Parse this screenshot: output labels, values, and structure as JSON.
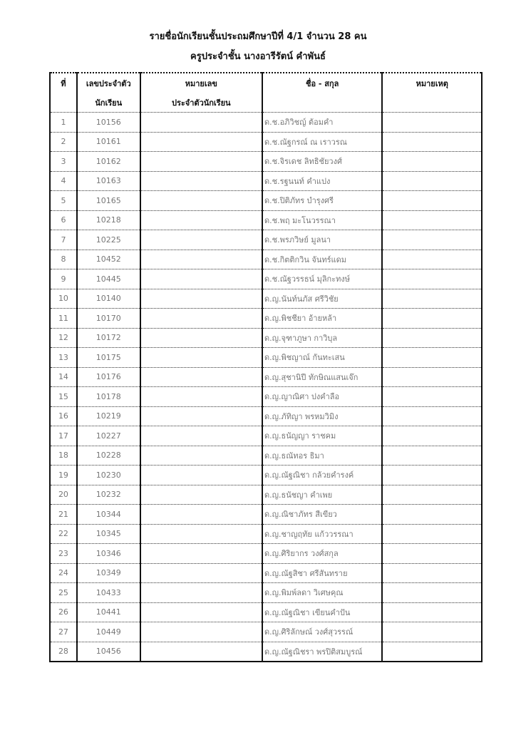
{
  "title": "รายชื่อนักเรียนชั้นประถมศึกษาปีที่  4/1  จำนวน 28  คน",
  "subtitle": "ครูประจำชั้น นางอารีรัตน์  คำพันธ์",
  "headers": {
    "no": "ที่",
    "id_1": "เลขประจำตัว",
    "id_2": "นักเรียน",
    "code_1": "หมายเลข",
    "code_2": "ประจำตัวนักเรียน",
    "name": "ชื่อ - สกุล",
    "note": "หมายเหตุ"
  },
  "rows": [
    {
      "no": "1",
      "id": "10156",
      "name": "ด.ช.อภิวิชญ์  ต้อมคำ"
    },
    {
      "no": "2",
      "id": "10161",
      "name": "ด.ช.ณัฐกรณ์  ณ เราวรณ"
    },
    {
      "no": "3",
      "id": "10162",
      "name": "ด.ช.จิรเดช  ลิทธิชัยวงศ์"
    },
    {
      "no": "4",
      "id": "10163",
      "name": "ด.ช.รฐนนท์  คำแปง"
    },
    {
      "no": "5",
      "id": "10165",
      "name": "ด.ช.ปิติภัทร  บำรุงศรี"
    },
    {
      "no": "6",
      "id": "10218",
      "name": "ด.ช.พฤ  มะโนวรรณา"
    },
    {
      "no": "7",
      "id": "10225",
      "name": "ด.ช.พรภวิษย์  มูลนา"
    },
    {
      "no": "8",
      "id": "10452",
      "name": "ด.ช.กิตติกวิน  จันทร์แดม"
    },
    {
      "no": "9",
      "id": "10445",
      "name": "ด.ช.ณัฐวรรธน์  มุลิกะทงษ์"
    },
    {
      "no": "10",
      "id": "10140",
      "name": "ด.ญ.นันท์นภัส  ศรีวิชัย"
    },
    {
      "no": "11",
      "id": "10170",
      "name": "ด.ญ.พิชชียา  อ้ายหล้า"
    },
    {
      "no": "12",
      "id": "10172",
      "name": "ด.ญ.จุฑาภูษา  กาวิบุล"
    },
    {
      "no": "13",
      "id": "10175",
      "name": "ด.ญ.พิชญาณ์  กันทะเสน"
    },
    {
      "no": "14",
      "id": "10176",
      "name": "ด.ญ.สุชานิปี  ทักษิณแสนเจ๊ก"
    },
    {
      "no": "15",
      "id": "10178",
      "name": "ด.ญ.ญาณิศา  ปงคำลือ"
    },
    {
      "no": "16",
      "id": "10219",
      "name": "ด.ญ.ภัทิญา  พรหมวิมิง"
    },
    {
      "no": "17",
      "id": "10227",
      "name": "ด.ญ.ธนัญญา  ราชคม"
    },
    {
      "no": "18",
      "id": "10228",
      "name": "ด.ญ.ธณัทอร  ธิมา"
    },
    {
      "no": "19",
      "id": "10230",
      "name": "ด.ญ.ณัฐณิชา  กล้วยคำรงค์"
    },
    {
      "no": "20",
      "id": "10232",
      "name": "ด.ญ.ธนัชญา  คำเพย"
    },
    {
      "no": "21",
      "id": "10344",
      "name": "ด.ญ.ณิชาภัทร  สีเขียว"
    },
    {
      "no": "22",
      "id": "10345",
      "name": "ด.ญ.ชาญฤทัย  แก้ววรรณา"
    },
    {
      "no": "23",
      "id": "10346",
      "name": "ด.ญ.ศิริยากร  วงศ์สกุล"
    },
    {
      "no": "24",
      "id": "10349",
      "name": "ด.ญ.ณัฐสิชา  ศรีสันทราย"
    },
    {
      "no": "25",
      "id": "10433",
      "name": "ด.ญ.พิมพ์ลดา  วิเศษคุณ"
    },
    {
      "no": "26",
      "id": "10441",
      "name": "ด.ญ.ณัฐณิชา  เขียนคำปัน"
    },
    {
      "no": "27",
      "id": "10449",
      "name": "ด.ญ.ศิริลักษณ์  วงศ์สุวรรณ์"
    },
    {
      "no": "28",
      "id": "10456",
      "name": "ด.ญ.ณัฐณิชรา  พรปิติสมบูรณ์"
    }
  ]
}
